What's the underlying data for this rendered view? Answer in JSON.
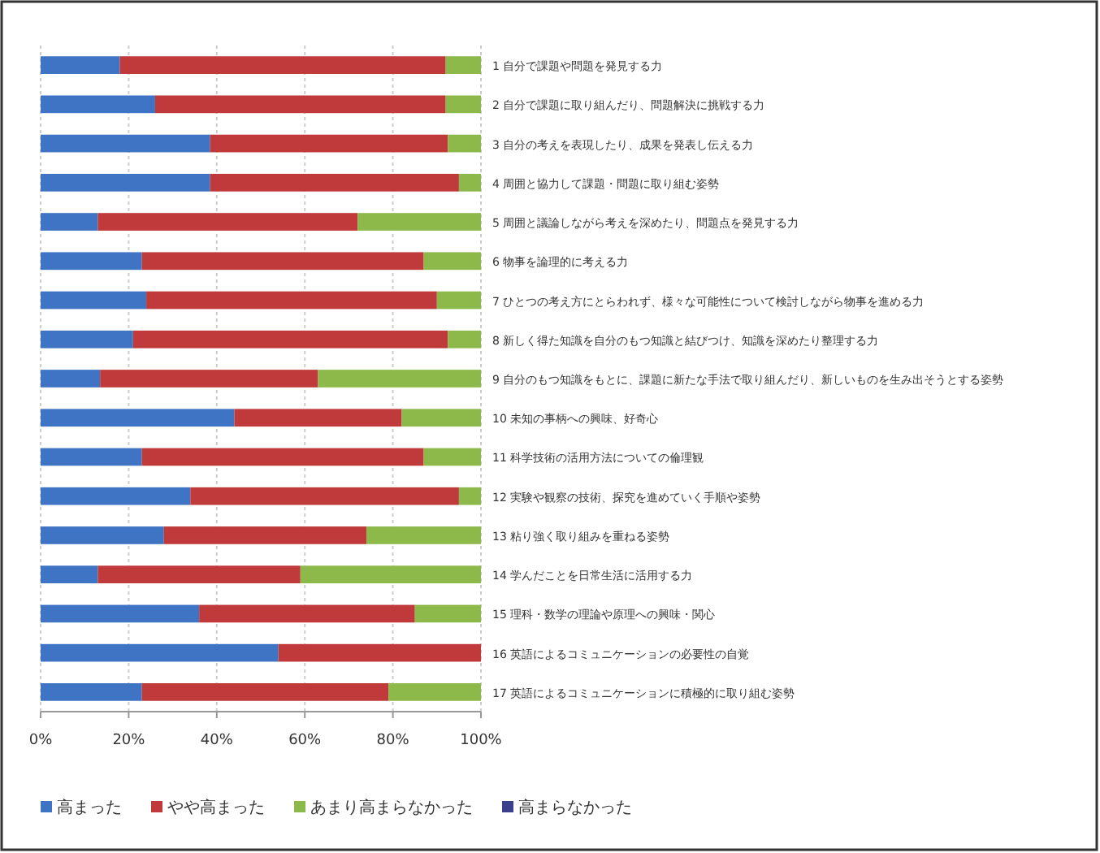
{
  "chart_data": {
    "type": "bar",
    "orientation": "horizontal",
    "stacked": true,
    "categories": [
      "1 自分で課題や問題を発見する力",
      "2 自分で課題に取り組んだり、問題解決に挑戦する力",
      "3 自分の考えを表現したり、成果を発表し伝える力",
      "4 周囲と協力して課題・問題に取り組む姿勢",
      "5 周囲と議論しながら考えを深めたり、問題点を発見する力",
      "6 物事を論理的に考える力",
      "7 ひとつの考え方にとらわれず、様々な可能性について検討しながら物事を進める力",
      "8 新しく得た知識を自分のもつ知識と結びつけ、知識を深めたり整理する力",
      "9 自分のもつ知識をもとに、課題に新たな手法で取り組んだり、新しいものを生み出そうとする姿勢",
      "10 未知の事柄への興味、好奇心",
      "11 科学技術の活用方法についての倫理観",
      "12 実験や観察の技術、探究を進めていく手順や姿勢",
      "13 粘り強く取り組みを重ねる姿勢",
      "14 学んだことを日常生活に活用する力",
      "15 理科・数学の理論や原理への興味・関心",
      "16 英語によるコミュニケーションの必要性の自覚",
      "17 英語によるコミュニケーションに積極的に取り組む姿勢"
    ],
    "series": [
      {
        "name": "高まった",
        "color": "#3f74c4",
        "values": [
          18,
          26,
          38.5,
          38.5,
          13,
          23,
          24,
          21,
          13.5,
          44,
          23,
          34,
          28,
          13,
          36,
          54,
          23
        ]
      },
      {
        "name": "やや高まった",
        "color": "#c0393b",
        "values": [
          74,
          66,
          54,
          56.5,
          59,
          64,
          66,
          71.5,
          49.5,
          38,
          64,
          61,
          46,
          46,
          49,
          46,
          56
        ]
      },
      {
        "name": "あまり高まらなかった",
        "color": "#8db84a",
        "values": [
          8,
          8,
          7.5,
          5,
          28,
          13,
          10,
          7.5,
          37,
          18,
          13,
          5,
          26,
          41,
          15,
          0,
          21
        ]
      },
      {
        "name": "高まらなかった",
        "color": "#3b3f8c",
        "values": [
          0,
          0,
          0,
          0,
          0,
          0,
          0,
          0,
          0,
          0,
          0,
          0,
          0,
          0,
          0,
          0,
          0
        ]
      }
    ],
    "xlim": [
      0,
      100
    ],
    "xticks": [
      {
        "value": 0,
        "label": "0%"
      },
      {
        "value": 20,
        "label": "20%"
      },
      {
        "value": 40,
        "label": "40%"
      },
      {
        "value": 60,
        "label": "60%"
      },
      {
        "value": 80,
        "label": "80%"
      },
      {
        "value": 100,
        "label": "100%"
      }
    ],
    "grid": "x",
    "legend": "bottom"
  }
}
